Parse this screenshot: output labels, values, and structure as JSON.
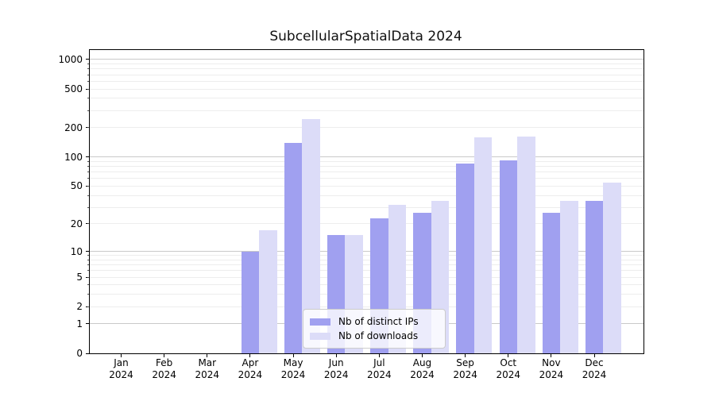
{
  "title": "SubcellularSpatialData 2024",
  "colors": {
    "ips_bar": "#a0a0f0",
    "downloads_bar": "#dcdcf8",
    "grid_major": "#c9c9c9",
    "grid_minor": "#ededed",
    "spine": "#000000",
    "background": "#ffffff"
  },
  "legend": {
    "item1": "Nb of distinct IPs",
    "item2": "Nb of downloads"
  },
  "chart_data": {
    "type": "bar",
    "title": "SubcellularSpatialData 2024",
    "categories": [
      "Jan 2024",
      "Feb 2024",
      "Mar 2024",
      "Apr 2024",
      "May 2024",
      "Jun 2024",
      "Jul 2024",
      "Aug 2024",
      "Sep 2024",
      "Oct 2024",
      "Nov 2024",
      "Dec 2024"
    ],
    "x_tick_months": [
      "Jan",
      "Feb",
      "Mar",
      "Apr",
      "May",
      "Jun",
      "Jul",
      "Aug",
      "Sep",
      "Oct",
      "Nov",
      "Dec"
    ],
    "x_tick_year": "2024",
    "series": [
      {
        "name": "Nb of distinct IPs",
        "color": "#a0a0f0",
        "values": [
          0,
          0,
          0,
          10,
          140,
          15,
          23,
          26,
          86,
          93,
          26,
          35
        ]
      },
      {
        "name": "Nb of downloads",
        "color": "#dcdcf8",
        "values": [
          0,
          0,
          0,
          17,
          245,
          15,
          32,
          35,
          158,
          162,
          35,
          54
        ]
      }
    ],
    "xlabel": "",
    "ylabel": "",
    "yscale": "log1p",
    "y_ticks": [
      0,
      1,
      2,
      5,
      10,
      20,
      50,
      100,
      200,
      500,
      1000
    ],
    "y_tick_labels": [
      "0",
      "1",
      "2",
      "5",
      "10",
      "20",
      "50",
      "100",
      "200",
      "500",
      "1000"
    ],
    "ylim": [
      0,
      1250
    ],
    "grid": true,
    "grid_major_at": [
      1,
      10,
      100,
      1000
    ],
    "legend_position": "lower center inside plot"
  }
}
